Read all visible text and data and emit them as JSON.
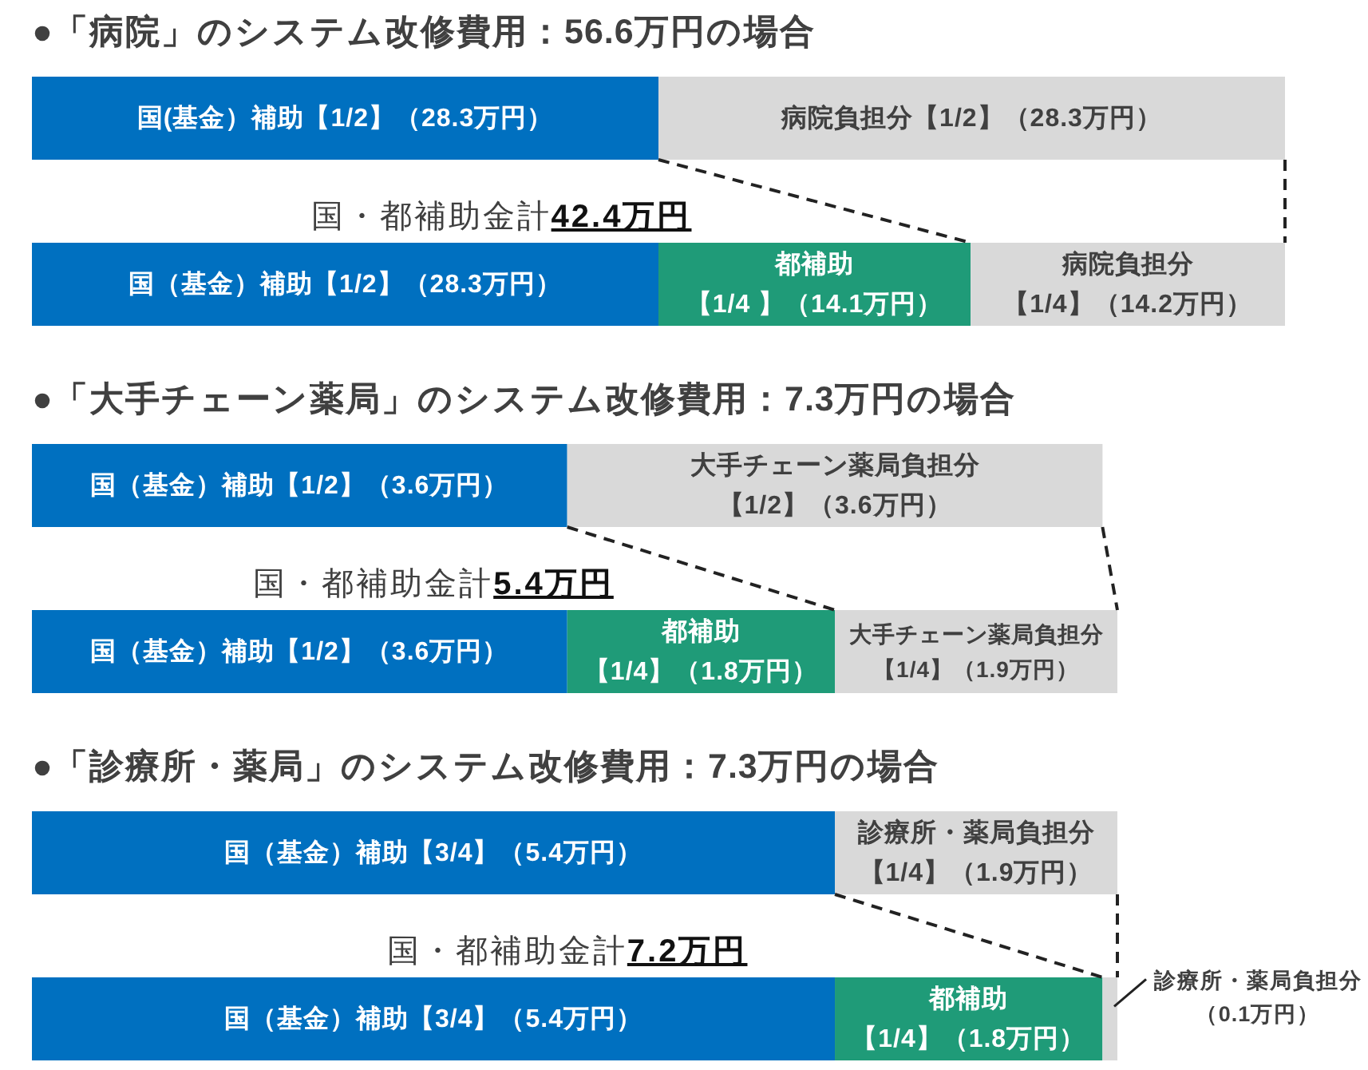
{
  "chart_data": [
    {
      "type": "bar",
      "orientation": "horizontal",
      "stacked": true,
      "title": "●「病院」のシステム改修費用：56.6万円の場合",
      "categories": [
        null,
        null
      ],
      "series": [
        {
          "color": "#0070c0",
          "values": [
            28.3,
            28.3
          ],
          "value_labels": [
            "国(基金）補助【1/2】（28.3万円）",
            "国（基金）補助【1/2】（28.3万円）"
          ]
        },
        {
          "color": "#1f9b78",
          "values": [
            null,
            14.1
          ],
          "value_labels": [
            null,
            "都補助【1/4 】（14.1万円）"
          ]
        },
        {
          "color": "#d9d9d9",
          "values": [
            28.3,
            14.2
          ],
          "value_labels": [
            "病院負担分【1/2】（28.3万円）",
            "病院負担分【1/4】（14.2万円）"
          ]
        }
      ],
      "annotations": [
        "国・都補助金計42.4万円"
      ]
    },
    {
      "type": "bar",
      "orientation": "horizontal",
      "stacked": true,
      "title": "●「大手チェーン薬局」のシステム改修費用：7.3万円の場合",
      "categories": [
        null,
        null
      ],
      "series": [
        {
          "color": "#0070c0",
          "values": [
            3.6,
            3.6
          ],
          "value_labels": [
            "国（基金）補助【1/2】（3.6万円）",
            "国（基金）補助【1/2】（3.6万円）"
          ]
        },
        {
          "color": "#1f9b78",
          "values": [
            null,
            1.8
          ],
          "value_labels": [
            null,
            "都補助【1/4】（1.8万円）"
          ]
        },
        {
          "color": "#d9d9d9",
          "values": [
            3.6,
            1.9
          ],
          "value_labels": [
            "大手チェーン薬局負担分【1/2】（3.6万円）",
            "大手チェーン薬局負担分【1/4】（1.9万円）"
          ]
        }
      ],
      "annotations": [
        "国・都補助金計5.4万円"
      ]
    },
    {
      "type": "bar",
      "orientation": "horizontal",
      "stacked": true,
      "title": "●「診療所・薬局」のシステム改修費用：7.3万円の場合",
      "categories": [
        null,
        null
      ],
      "series": [
        {
          "color": "#0070c0",
          "values": [
            5.4,
            5.4
          ],
          "value_labels": [
            "国（基金）補助【3/4】（5.4万円）",
            "国（基金）補助【3/4】（5.4万円）"
          ]
        },
        {
          "color": "#1f9b78",
          "values": [
            null,
            1.8
          ],
          "value_labels": [
            null,
            "都補助【1/4】（1.8万円）"
          ]
        },
        {
          "color": "#d9d9d9",
          "values": [
            1.9,
            0.1
          ],
          "value_labels": [
            "診療所・薬局負担分【1/4】（1.9万円）",
            "診療所・薬局負担分（0.1万円）"
          ]
        }
      ],
      "annotations": [
        "国・都補助金計7.2万円"
      ]
    }
  ]
}
